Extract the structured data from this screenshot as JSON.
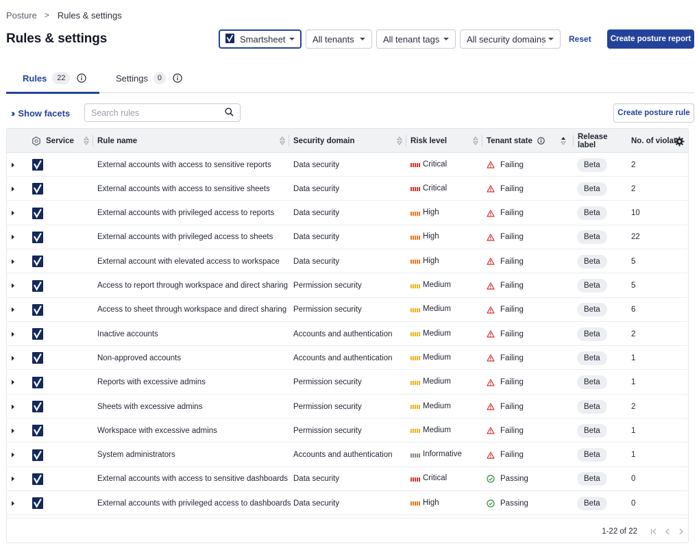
{
  "breadcrumb": {
    "parent": "Posture",
    "separator": ">",
    "current": "Rules & settings"
  },
  "page_title": "Rules & settings",
  "filters": {
    "service": "Smartsheet",
    "tenants": "All tenants",
    "tenant_tags": "All tenant tags",
    "security_domains": "All security domains",
    "reset": "Reset"
  },
  "create_report_label": "Create posture report",
  "tabs": [
    {
      "label": "Rules",
      "count": "22",
      "active": true
    },
    {
      "label": "Settings",
      "count": "0",
      "active": false
    }
  ],
  "toolbar": {
    "show_facets": "Show facets",
    "search_placeholder": "Search rules",
    "create_rule_label": "Create posture rule"
  },
  "columns": {
    "service": "Service",
    "rule_name": "Rule name",
    "security_domain": "Security domain",
    "risk_level": "Risk level",
    "tenant_state": "Tenant state",
    "release_label": "Release label",
    "violations": "No. of violat"
  },
  "risk_colors": {
    "Critical": "#d6302f",
    "High": "#e9761a",
    "Medium": "#e9b21a",
    "Informative": "#7c8a7f"
  },
  "state_colors": {
    "Failing": "#d6302f",
    "Passing": "#2f8a3e"
  },
  "brand_color": "#24429a",
  "rows": [
    {
      "rule": "External accounts with access to sensitive reports",
      "domain": "Data security",
      "risk": "Critical",
      "state": "Failing",
      "label": "Beta",
      "violations": "2"
    },
    {
      "rule": "External accounts with access to sensitive sheets",
      "domain": "Data security",
      "risk": "Critical",
      "state": "Failing",
      "label": "Beta",
      "violations": "2"
    },
    {
      "rule": "External accounts with privileged access to reports",
      "domain": "Data security",
      "risk": "High",
      "state": "Failing",
      "label": "Beta",
      "violations": "10"
    },
    {
      "rule": "External accounts with privileged access to sheets",
      "domain": "Data security",
      "risk": "High",
      "state": "Failing",
      "label": "Beta",
      "violations": "22"
    },
    {
      "rule": "External account with elevated access to workspace",
      "domain": "Data security",
      "risk": "High",
      "state": "Failing",
      "label": "Beta",
      "violations": "5"
    },
    {
      "rule": "Access to report through workspace and direct sharing",
      "domain": "Permission security",
      "risk": "Medium",
      "state": "Failing",
      "label": "Beta",
      "violations": "5"
    },
    {
      "rule": "Access to sheet through workspace and direct sharing",
      "domain": "Permission security",
      "risk": "Medium",
      "state": "Failing",
      "label": "Beta",
      "violations": "6"
    },
    {
      "rule": "Inactive accounts",
      "domain": "Accounts and authentication",
      "risk": "Medium",
      "state": "Failing",
      "label": "Beta",
      "violations": "2"
    },
    {
      "rule": "Non-approved accounts",
      "domain": "Accounts and authentication",
      "risk": "Medium",
      "state": "Failing",
      "label": "Beta",
      "violations": "1"
    },
    {
      "rule": "Reports with excessive admins",
      "domain": "Permission security",
      "risk": "Medium",
      "state": "Failing",
      "label": "Beta",
      "violations": "1"
    },
    {
      "rule": "Sheets with excessive admins",
      "domain": "Permission security",
      "risk": "Medium",
      "state": "Failing",
      "label": "Beta",
      "violations": "2"
    },
    {
      "rule": "Workspace with excessive admins",
      "domain": "Permission security",
      "risk": "Medium",
      "state": "Failing",
      "label": "Beta",
      "violations": "1"
    },
    {
      "rule": "System administrators",
      "domain": "Accounts and authentication",
      "risk": "Informative",
      "state": "Failing",
      "label": "Beta",
      "violations": "1"
    },
    {
      "rule": "External accounts with access to sensitive dashboards",
      "domain": "Data security",
      "risk": "Critical",
      "state": "Passing",
      "label": "Beta",
      "violations": "0"
    },
    {
      "rule": "External accounts with privileged access to dashboards",
      "domain": "Data security",
      "risk": "High",
      "state": "Passing",
      "label": "Beta",
      "violations": "0"
    }
  ],
  "pagination": {
    "range": "1-22 of 22"
  }
}
